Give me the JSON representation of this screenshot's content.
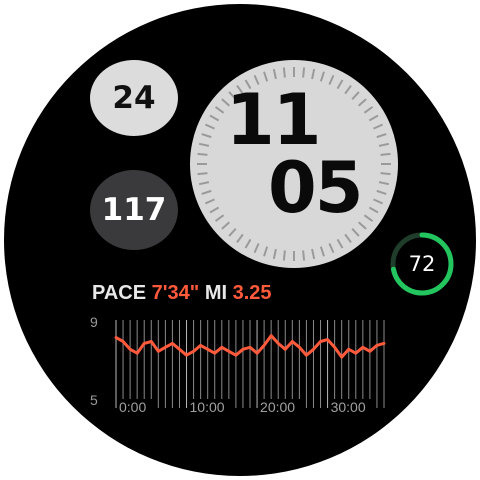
{
  "complications": {
    "date": "24",
    "energy": "117"
  },
  "time": {
    "hours": "11",
    "minutes": "05"
  },
  "ring": {
    "value": "72",
    "fraction": 0.72,
    "color": "#22c55e"
  },
  "workout": {
    "pace_label": "PACE",
    "pace_value": "7'34\"",
    "distance_label": "MI",
    "distance_value": "3.25",
    "accent_color": "#ff5a3c"
  },
  "chart_data": {
    "type": "line",
    "title": "",
    "xlabel": "",
    "ylabel": "",
    "ylim": [
      5,
      9
    ],
    "y_ticks": [
      "9",
      "5"
    ],
    "x_ticks": [
      "0:00",
      "10:00",
      "20:00",
      "30:00"
    ],
    "x_range": [
      0,
      38
    ],
    "x": [
      0,
      1,
      2,
      3,
      4,
      5,
      6,
      7,
      8,
      9,
      10,
      11,
      12,
      13,
      14,
      15,
      16,
      17,
      18,
      19,
      20,
      21,
      22,
      23,
      24,
      25,
      26,
      27,
      28,
      29,
      30,
      31,
      32,
      33,
      34,
      35,
      36,
      37,
      38
    ],
    "series": [
      {
        "values": [
          8.2,
          8.0,
          7.6,
          7.4,
          7.9,
          8.0,
          7.5,
          7.7,
          7.9,
          7.6,
          7.3,
          7.5,
          7.8,
          7.6,
          7.4,
          7.7,
          7.5,
          7.3,
          7.6,
          7.7,
          7.4,
          7.8,
          8.3,
          7.9,
          7.6,
          8.0,
          7.7,
          7.3,
          7.6,
          8.0,
          8.1,
          7.7,
          7.2,
          7.6,
          7.4,
          7.7,
          7.5,
          7.8,
          7.9
        ],
        "color": "#ff5a3c"
      }
    ]
  }
}
